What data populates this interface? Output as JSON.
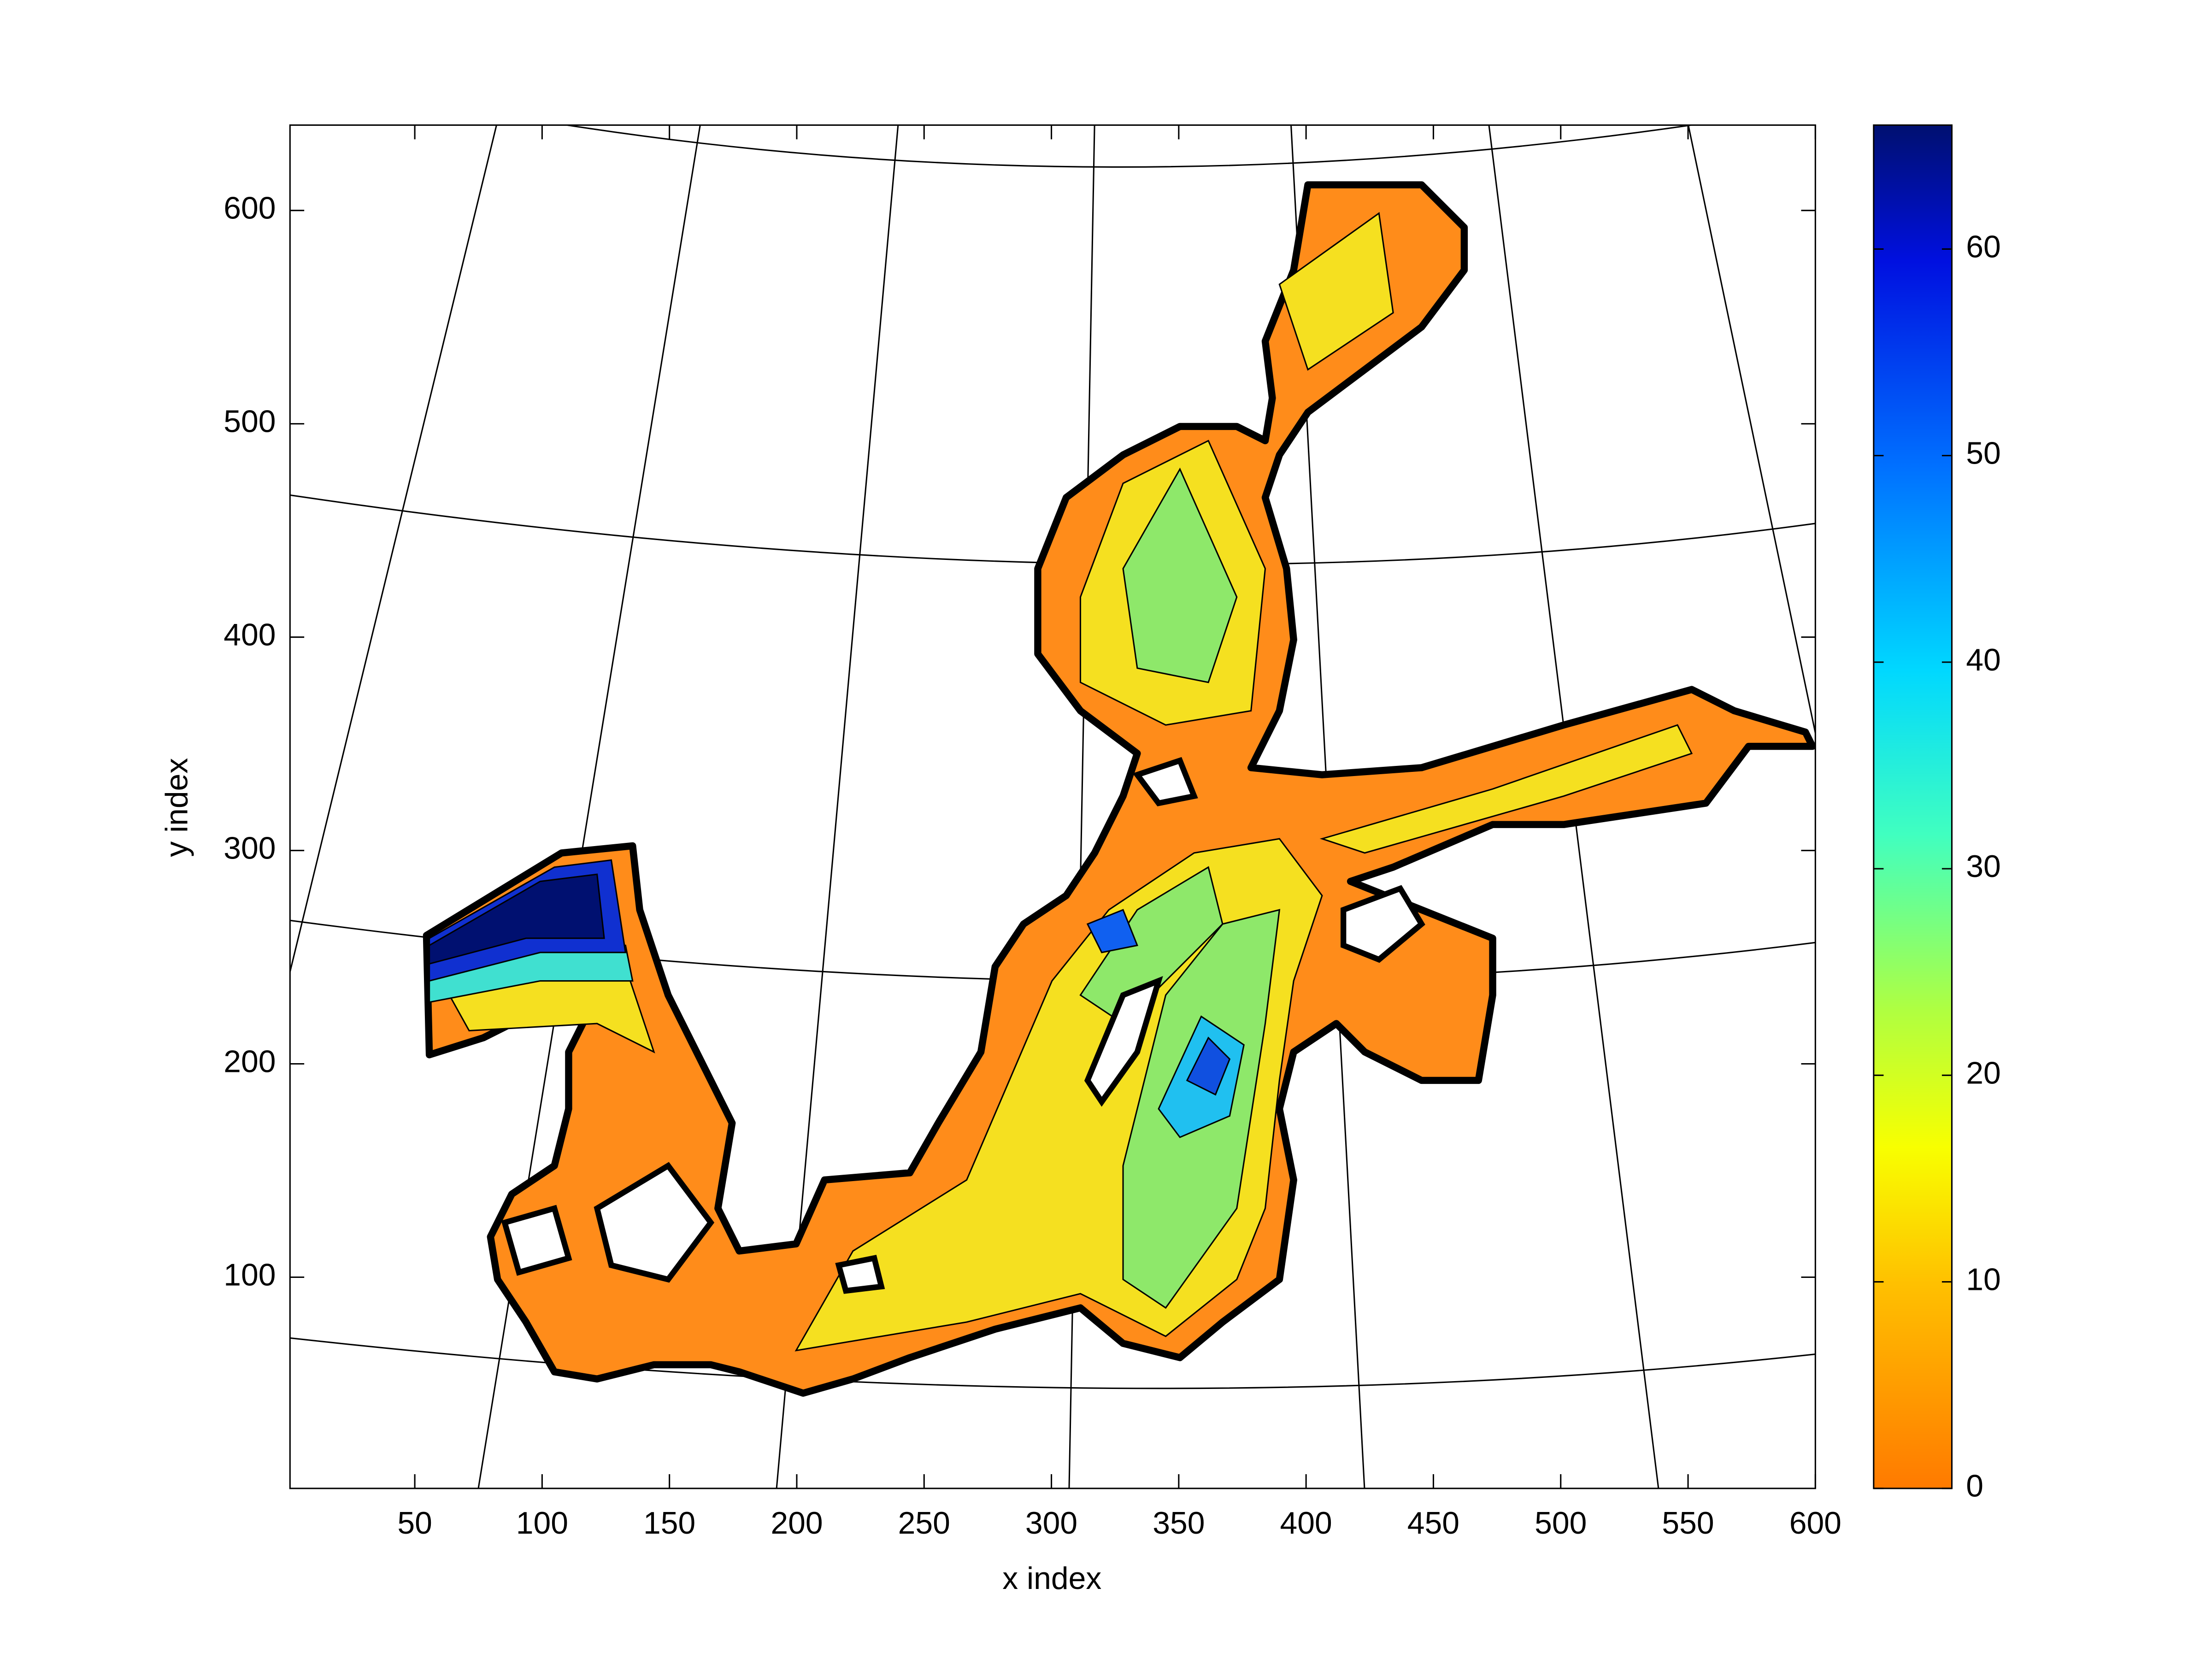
{
  "chart_data": {
    "type": "contour",
    "xlabel": "x index",
    "ylabel": "y index",
    "xlim": [
      1,
      600
    ],
    "ylim": [
      1,
      640
    ],
    "xticks": [
      50,
      100,
      150,
      200,
      250,
      300,
      350,
      400,
      450,
      500,
      550,
      600
    ],
    "yticks": [
      100,
      200,
      300,
      400,
      500,
      600
    ],
    "colorbar": {
      "clim": [
        0,
        66
      ],
      "ticks": [
        0,
        10,
        20,
        30,
        40,
        50,
        60
      ]
    }
  }
}
